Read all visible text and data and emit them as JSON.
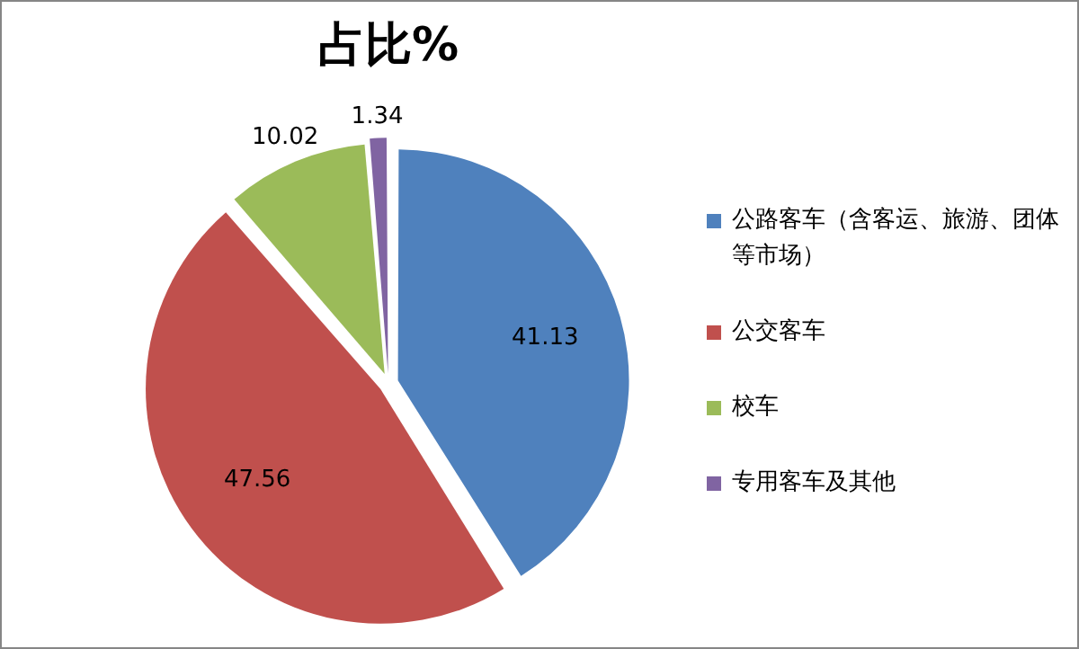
{
  "chart_data": {
    "type": "pie",
    "title": "占比%",
    "categories": [
      "公路客车（含客运、旅游、团体等市场）",
      "公交客车",
      "校车",
      "专用客车及其他"
    ],
    "values": [
      41.13,
      47.56,
      10.02,
      1.34
    ],
    "colors": [
      "#4f81bd",
      "#c0504d",
      "#9bbb59",
      "#8064a2"
    ],
    "data_labels": true,
    "legend": "right"
  }
}
